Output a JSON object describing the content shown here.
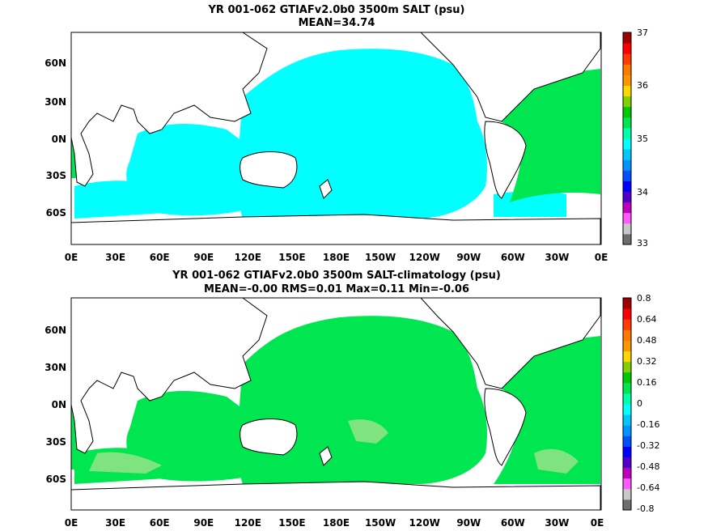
{
  "colors": {
    "scale": [
      "#6e6e6e",
      "#c8c8c8",
      "#ff5aff",
      "#c000c0",
      "#5000c8",
      "#0000ff",
      "#0050ff",
      "#0096ff",
      "#00c8ff",
      "#00ffff",
      "#00ffaa",
      "#00e650",
      "#00c800",
      "#7fd200",
      "#ffd700",
      "#ff9600",
      "#ff7800",
      "#ff3c00",
      "#ff0000",
      "#a00000"
    ],
    "land": "#ffffff",
    "coast": "#000000"
  },
  "panels": [
    {
      "title1": "YR 001-062 GTIAFv2.0b0 3500m SALT (psu)",
      "title2": "MEAN=34.74",
      "lon_ticks": [
        "0E",
        "30E",
        "60E",
        "90E",
        "120E",
        "150E",
        "180E",
        "150W",
        "120W",
        "90W",
        "60W",
        "30W",
        "0E"
      ],
      "lat_ticks": [
        "60N",
        "30N",
        "0N",
        "30S",
        "60S"
      ],
      "colorbar_labels": [
        "37",
        "36",
        "35",
        "34",
        "33"
      ],
      "field": "salinity"
    },
    {
      "title1": "YR 001-062 GTIAFv2.0b0 3500m SALT-climatology (psu)",
      "title2": "MEAN=-0.00   RMS=0.01   Max=0.11   Min=-0.06",
      "lon_ticks": [
        "0E",
        "30E",
        "60E",
        "90E",
        "120E",
        "150E",
        "180E",
        "150W",
        "120W",
        "90W",
        "60W",
        "30W",
        "0E"
      ],
      "lat_ticks": [
        "60N",
        "30N",
        "0N",
        "30S",
        "60S"
      ],
      "colorbar_labels": [
        "0.8",
        "0.64",
        "0.48",
        "0.32",
        "0.16",
        "0",
        "-0.16",
        "-0.32",
        "-0.48",
        "-0.64",
        "-0.8"
      ],
      "field": "anomaly"
    }
  ]
}
